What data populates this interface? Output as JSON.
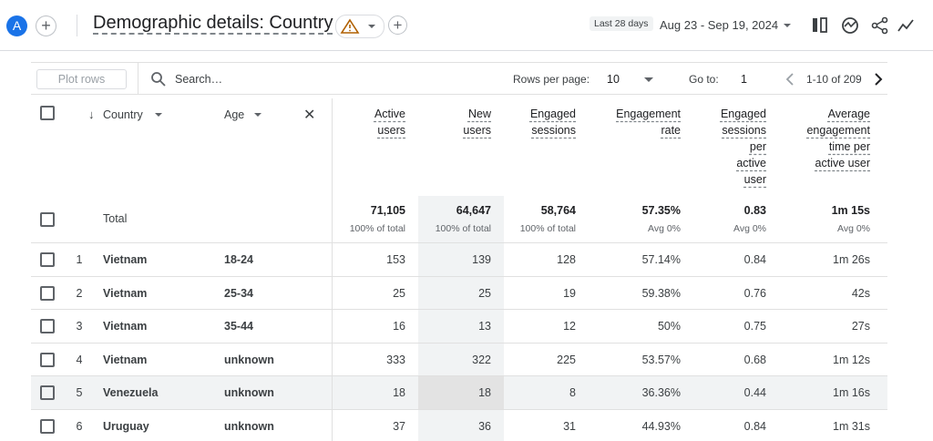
{
  "header": {
    "avatar": "A",
    "title": "Demographic details: Country",
    "date_label": "Last 28 days",
    "date_range": "Aug 23 - Sep 19, 2024"
  },
  "toolbar": {
    "plot_rows": "Plot rows",
    "search": "Search…",
    "rows_per_page_label": "Rows per page:",
    "rows_per_page": "10",
    "goto_label": "Go to:",
    "goto": "1",
    "pagination": "1-10 of 209"
  },
  "table": {
    "dimensions": [
      "Country",
      "Age"
    ],
    "metrics": [
      "Active users",
      "New users",
      "Engaged sessions",
      "Engagement rate",
      "Engaged sessions per active user",
      "Average engagement time per active user"
    ],
    "total": {
      "label": "Total",
      "values": [
        "71,105",
        "64,647",
        "58,764",
        "57.35%",
        "0.83",
        "1m 15s"
      ],
      "notes": [
        "100% of total",
        "100% of total",
        "100% of total",
        "Avg 0%",
        "Avg 0%",
        "Avg 0%"
      ]
    },
    "rows": [
      [
        1,
        "Vietnam",
        "18-24",
        153,
        139,
        128,
        "57.14%",
        0.84,
        "1m 26s"
      ],
      [
        2,
        "Vietnam",
        "25-34",
        25,
        25,
        19,
        "59.38%",
        0.76,
        "42s"
      ],
      [
        3,
        "Vietnam",
        "35-44",
        16,
        13,
        12,
        "50%",
        0.75,
        "27s"
      ],
      [
        4,
        "Vietnam",
        "unknown",
        333,
        322,
        225,
        "53.57%",
        0.68,
        "1m 12s"
      ],
      [
        5,
        "Venezuela",
        "unknown",
        18,
        18,
        8,
        "36.36%",
        0.44,
        "1m 16s"
      ],
      [
        6,
        "Uruguay",
        "unknown",
        37,
        36,
        31,
        "44.93%",
        0.84,
        "1m 31s"
      ]
    ]
  }
}
